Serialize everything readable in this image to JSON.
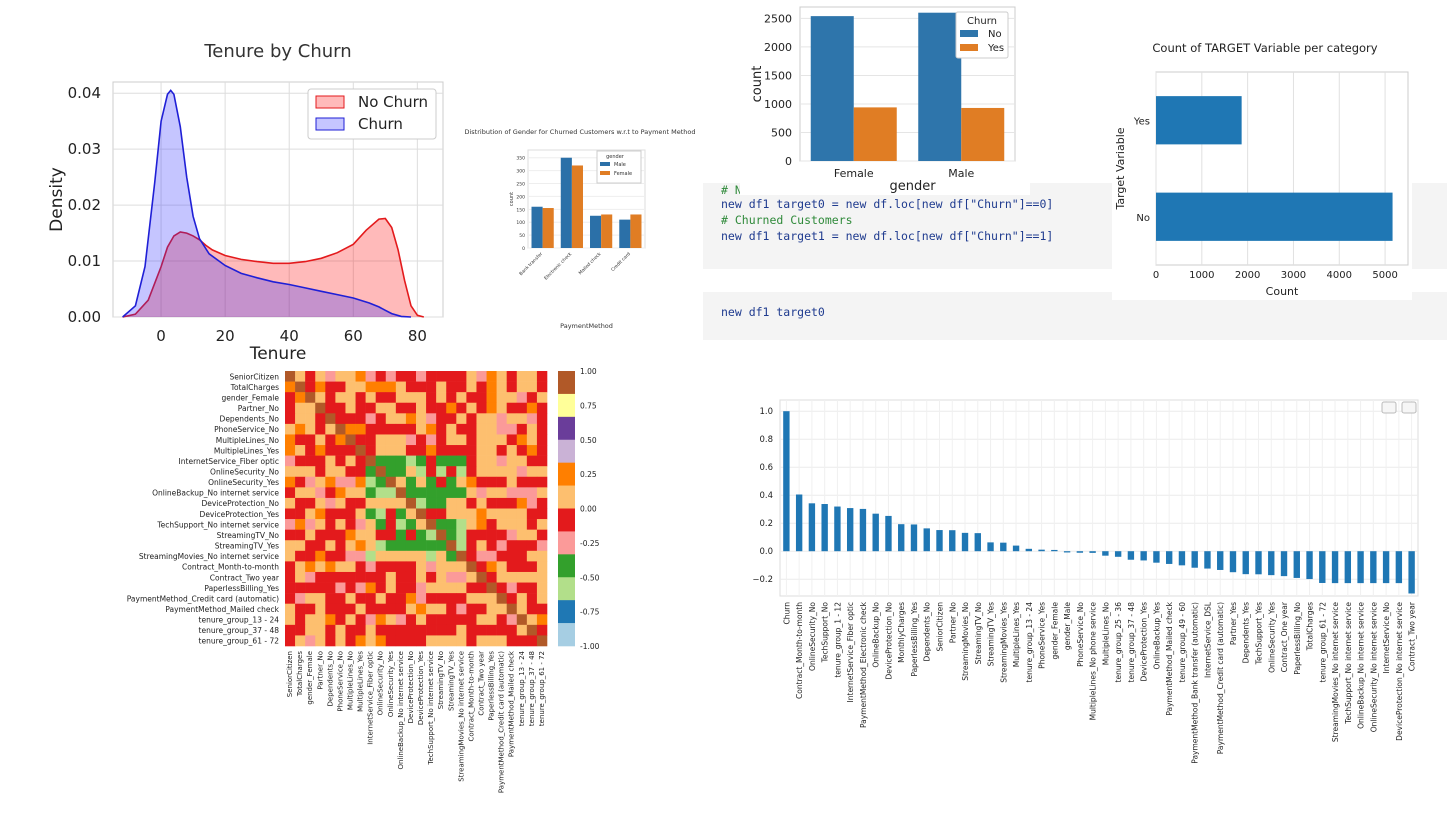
{
  "code": {
    "line1": "# No",
    "line2": "new df1 target0 = new df.loc[new df[\"Churn\"]==0]",
    "line3": "# Churned Customers",
    "line4": "new df1 target1 = new df.loc[new df[\"Churn\"]==1]",
    "line5": "new df1 target0"
  },
  "chart_data": [
    {
      "id": "kde",
      "type": "area",
      "title": "Tenure by Churn",
      "xlabel": "Tenure",
      "ylabel": "Density",
      "xlim": [
        -15,
        88
      ],
      "ylim": [
        0,
        0.042
      ],
      "xticks": [
        "0",
        "20",
        "40",
        "60",
        "80"
      ],
      "yticks": [
        "0.00",
        "0.01",
        "0.02",
        "0.03",
        "0.04"
      ],
      "legend": "top-right",
      "grid": true,
      "series": [
        {
          "name": "No Churn",
          "color": "#e31a1c",
          "x": [
            -12,
            -8,
            -4,
            0,
            2,
            4,
            6,
            8,
            10,
            12,
            14,
            16,
            20,
            25,
            30,
            35,
            40,
            45,
            50,
            55,
            60,
            64,
            68,
            70,
            72,
            74,
            76,
            78,
            80,
            82
          ],
          "y": [
            0,
            0.0005,
            0.003,
            0.009,
            0.0125,
            0.0145,
            0.0152,
            0.015,
            0.0145,
            0.0138,
            0.0128,
            0.012,
            0.011,
            0.0103,
            0.0099,
            0.0096,
            0.0096,
            0.0099,
            0.0105,
            0.0115,
            0.013,
            0.0155,
            0.0175,
            0.0176,
            0.016,
            0.012,
            0.0065,
            0.002,
            0.0003,
            0
          ]
        },
        {
          "name": "Churn",
          "color": "#1f1fd6",
          "x": [
            -12,
            -8,
            -5,
            -2,
            0,
            2,
            3,
            4,
            6,
            8,
            10,
            12,
            15,
            20,
            25,
            30,
            35,
            40,
            45,
            50,
            55,
            60,
            65,
            68,
            70,
            72,
            75,
            78
          ],
          "y": [
            0,
            0.002,
            0.009,
            0.024,
            0.035,
            0.0398,
            0.0405,
            0.0398,
            0.034,
            0.025,
            0.018,
            0.014,
            0.0113,
            0.0092,
            0.0078,
            0.007,
            0.0063,
            0.0058,
            0.0052,
            0.0046,
            0.004,
            0.0034,
            0.0025,
            0.0018,
            0.0012,
            0.0006,
            0.0001,
            0
          ]
        }
      ]
    },
    {
      "id": "gender-payment",
      "type": "bar",
      "title": "Distribution of Gender for Churned Customers w.r.t to Payment Method",
      "xlabel": "PaymentMethod",
      "ylabel": "count",
      "ylim": [
        0,
        380
      ],
      "yticks": [
        "0",
        "50",
        "100",
        "150",
        "200",
        "250",
        "300",
        "350"
      ],
      "categories": [
        "Bank transfer",
        "Electronic check",
        "Mailed check",
        "Credit card"
      ],
      "legend_title": "gender",
      "series": [
        {
          "name": "Male",
          "color": "#2b70a8",
          "values": [
            160,
            350,
            125,
            110
          ]
        },
        {
          "name": "Female",
          "color": "#e07d24",
          "values": [
            155,
            320,
            130,
            130
          ]
        }
      ]
    },
    {
      "id": "gender-churn",
      "type": "bar",
      "xlabel": "gender",
      "ylabel": "count",
      "ylim": [
        0,
        2700
      ],
      "yticks": [
        "0",
        "500",
        "1000",
        "1500",
        "2000",
        "2500"
      ],
      "categories": [
        "Female",
        "Male"
      ],
      "legend_title": "Churn",
      "series": [
        {
          "name": "No",
          "color": "#2e75ab",
          "values": [
            2540,
            2600
          ]
        },
        {
          "name": "Yes",
          "color": "#e07d24",
          "values": [
            940,
            930
          ]
        }
      ]
    },
    {
      "id": "target-count",
      "type": "bar",
      "title": "Count of TARGET Variable per category",
      "xlabel": "Count",
      "ylabel": "Target Variable",
      "xlim": [
        0,
        5500
      ],
      "xticks": [
        "0",
        "1000",
        "2000",
        "3000",
        "4000",
        "5000"
      ],
      "categories": [
        "Yes",
        "No"
      ],
      "color": "#1f77b4",
      "values": [
        1869,
        5163
      ]
    },
    {
      "id": "heatmap",
      "type": "heatmap",
      "row_labels": [
        "SeniorCitizen",
        "TotalCharges",
        "gender_Female",
        "Partner_No",
        "Dependents_No",
        "PhoneService_No",
        "MultipleLines_No",
        "MultipleLines_Yes",
        "InternetService_Fiber optic",
        "OnlineSecurity_No",
        "OnlineSecurity_Yes",
        "OnlineBackup_No internet service",
        "DeviceProtection_No",
        "DeviceProtection_Yes",
        "TechSupport_No internet service",
        "StreamingTV_No",
        "StreamingTV_Yes",
        "StreamingMovies_No internet service",
        "Contract_Month-to-month",
        "Contract_Two year",
        "PaperlessBilling_Yes",
        "PaymentMethod_Credit card (automatic)",
        "PaymentMethod_Mailed check",
        "tenure_group_13 - 24",
        "tenure_group_37 - 48",
        "tenure_group_61 - 72"
      ],
      "col_labels": [
        "SeniorCitizen",
        "TotalCharges",
        "gender_Female",
        "Partner_No",
        "Dependents_No",
        "PhoneService_No",
        "MultipleLines_No",
        "MultipleLines_Yes",
        "InternetService_Fiber optic",
        "OnlineSecurity_No",
        "OnlineSecurity_Yes",
        "OnlineBackup_No internet service",
        "DeviceProtection_No",
        "DeviceProtection_Yes",
        "TechSupport_No internet service",
        "StreamingTV_No",
        "StreamingTV_Yes",
        "StreamingMovies_No internet service",
        "Contract_Month-to-month",
        "Contract_Two year",
        "PaperlessBilling_Yes",
        "PaymentMethod_Credit card (automatic)",
        "PaymentMethod_Mailed check",
        "tenure_group_13 - 24",
        "tenure_group_37 - 48",
        "tenure_group_61 - 72"
      ],
      "colorbar_ticks": [
        "1.00",
        "0.75",
        "0.50",
        "0.25",
        "0.00",
        "-0.25",
        "-0.50",
        "-0.75",
        "-1.00"
      ],
      "colorbar_colors": [
        "#b15928",
        "#ffff99",
        "#6a3d9a",
        "#cab2d6",
        "#ff7f00",
        "#fdbf6f",
        "#e31a1c",
        "#fb9a99",
        "#33a02c",
        "#b2df8a",
        "#1f78b4",
        "#a6cee3"
      ]
    },
    {
      "id": "churn-corr",
      "type": "bar",
      "ylim": [
        -0.32,
        1.08
      ],
      "yticks": [
        "1.0",
        "0.8",
        "0.6",
        "0.4",
        "0.2",
        "0.0",
        "−0.2"
      ],
      "color": "#1f77b4",
      "categories": [
        "Churn",
        "Contract_Month-to-month",
        "OnlineSecurity_No",
        "TechSupport_No",
        "tenure_group_1 - 12",
        "InternetService_Fiber optic",
        "PaymentMethod_Electronic check",
        "OnlineBackup_No",
        "DeviceProtection_No",
        "MonthlyCharges",
        "PaperlessBilling_Yes",
        "Dependents_No",
        "SeniorCitizen",
        "Partner_No",
        "StreamingMovies_No",
        "StreamingTV_No",
        "StreamingTV_Yes",
        "StreamingMovies_Yes",
        "MultipleLines_Yes",
        "tenure_group_13 - 24",
        "PhoneService_Yes",
        "gender_Female",
        "gender_Male",
        "PhoneService_No",
        "MultipleLines_No phone service",
        "MultipleLines_No",
        "tenure_group_25 - 36",
        "tenure_group_37 - 48",
        "DeviceProtection_Yes",
        "OnlineBackup_Yes",
        "PaymentMethod_Mailed check",
        "tenure_group_49 - 60",
        "PaymentMethod_Bank transfer (automatic)",
        "InternetService_DSL",
        "PaymentMethod_Credit card (automatic)",
        "Partner_Yes",
        "Dependents_Yes",
        "TechSupport_Yes",
        "OnlineSecurity_Yes",
        "Contract_One year",
        "PaperlessBilling_No",
        "TotalCharges",
        "tenure_group_61 - 72",
        "StreamingMovies_No internet service",
        "TechSupport_No internet service",
        "OnlineBackup_No internet service",
        "OnlineSecurity_No internet service",
        "InternetService_No",
        "DeviceProtection_No internet service",
        "Contract_Two year"
      ],
      "values": [
        1.0,
        0.405,
        0.342,
        0.337,
        0.319,
        0.308,
        0.302,
        0.268,
        0.252,
        0.193,
        0.191,
        0.163,
        0.151,
        0.15,
        0.131,
        0.129,
        0.063,
        0.061,
        0.04,
        0.017,
        0.011,
        0.009,
        -0.009,
        -0.011,
        -0.012,
        -0.032,
        -0.04,
        -0.061,
        -0.066,
        -0.082,
        -0.091,
        -0.101,
        -0.118,
        -0.124,
        -0.134,
        -0.15,
        -0.164,
        -0.165,
        -0.171,
        -0.178,
        -0.191,
        -0.199,
        -0.227,
        -0.228,
        -0.228,
        -0.228,
        -0.228,
        -0.228,
        -0.228,
        -0.302
      ]
    }
  ]
}
